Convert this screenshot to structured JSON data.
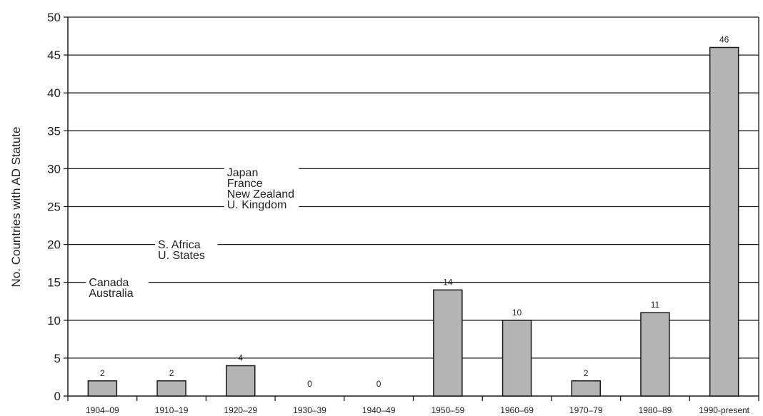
{
  "chart_data": {
    "type": "bar",
    "title": "",
    "xlabel": "",
    "ylabel": "No. Countries with AD Statute",
    "ylim": [
      0,
      50
    ],
    "yticks": [
      0,
      5,
      10,
      15,
      20,
      25,
      30,
      35,
      40,
      45,
      50
    ],
    "grid": true,
    "categories": [
      "1904–09",
      "1910–19",
      "1920–29",
      "1930–39",
      "1940–49",
      "1950–59",
      "1960–69",
      "1970–79",
      "1980–89",
      "1990-present"
    ],
    "values": [
      2,
      2,
      4,
      0,
      0,
      14,
      10,
      2,
      11,
      46
    ],
    "data_labels": [
      "2",
      "2",
      "4",
      "0",
      "0",
      "14",
      "10",
      "2",
      "11",
      "46"
    ],
    "bar_color": "#b4b4b4",
    "annotations": [
      {
        "lines": [
          "Canada",
          "Australia"
        ],
        "category": "1904–09"
      },
      {
        "lines": [
          "S. Africa",
          "U. States"
        ],
        "category": "1910–19"
      },
      {
        "lines": [
          "Japan",
          "France",
          "New Zealand",
          "U. Kingdom"
        ],
        "category": "1920–29"
      }
    ]
  }
}
